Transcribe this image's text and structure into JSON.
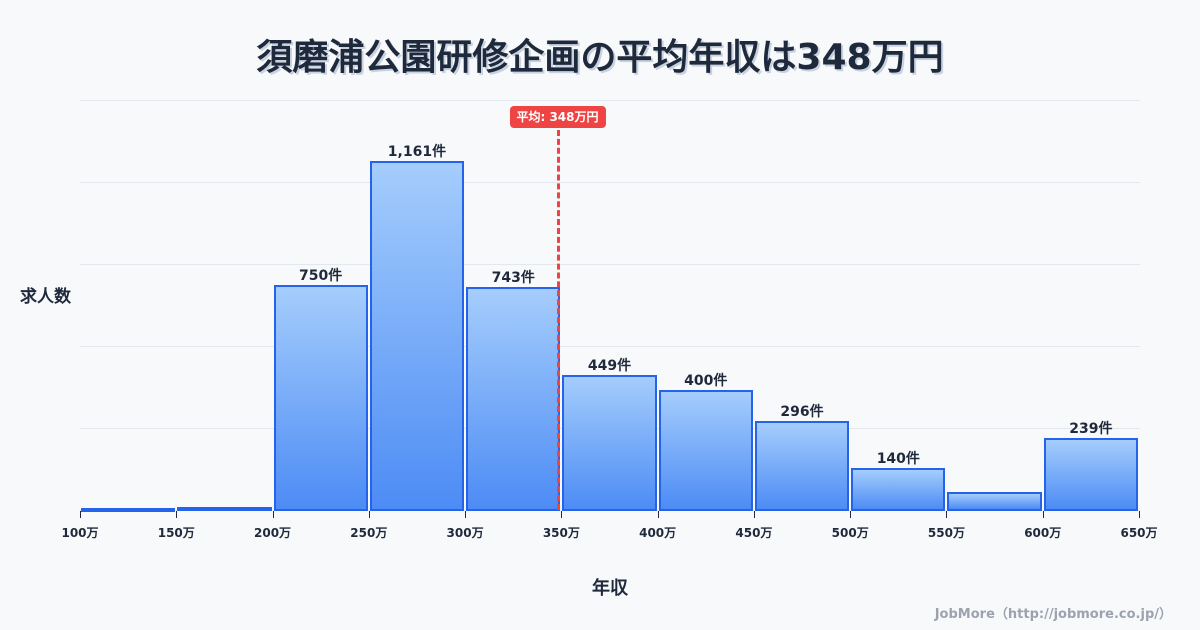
{
  "title": "須磨浦公園研修企画の平均年収は348万円",
  "mean_badge": "平均: 348万円",
  "ylabel": "求人数",
  "xlabel": "年収",
  "credit": "JobMore（http://jobmore.co.jp/）",
  "colors": {
    "bar_fill_top": "#a5cdfc",
    "bar_fill_bottom": "#4d8cf5",
    "bar_border": "#2563eb",
    "mean_line": "#ef4444",
    "text": "#1e293b",
    "background": "#f8f9fb"
  },
  "chart_data": {
    "type": "bar",
    "title": "須磨浦公園研修企画の平均年収は348万円",
    "xlabel": "年収",
    "ylabel": "求人数",
    "bins": [
      {
        "from": "100万",
        "to": "150万",
        "value": 4,
        "label": ""
      },
      {
        "from": "150万",
        "to": "200万",
        "value": 10,
        "label": ""
      },
      {
        "from": "200万",
        "to": "250万",
        "value": 750,
        "label": "750件"
      },
      {
        "from": "250万",
        "to": "300万",
        "value": 1161,
        "label": "1,161件"
      },
      {
        "from": "300万",
        "to": "350万",
        "value": 743,
        "label": "743件"
      },
      {
        "from": "350万",
        "to": "400万",
        "value": 449,
        "label": "449件"
      },
      {
        "from": "400万",
        "to": "450万",
        "value": 400,
        "label": "400件"
      },
      {
        "from": "450万",
        "to": "500万",
        "value": 296,
        "label": "296件"
      },
      {
        "from": "500万",
        "to": "550万",
        "value": 140,
        "label": "140件"
      },
      {
        "from": "550万",
        "to": "600万",
        "value": 60,
        "label": ""
      },
      {
        "from": "600万",
        "to": "650万",
        "value": 239,
        "label": "239件"
      }
    ],
    "x_ticks": [
      "100万",
      "150万",
      "200万",
      "250万",
      "300万",
      "350万",
      "400万",
      "450万",
      "500万",
      "550万",
      "600万",
      "650万"
    ],
    "mean": {
      "value": 348,
      "label": "平均: 348万円"
    },
    "ylim": [
      0,
      1364
    ],
    "grid": true,
    "legend": null
  }
}
